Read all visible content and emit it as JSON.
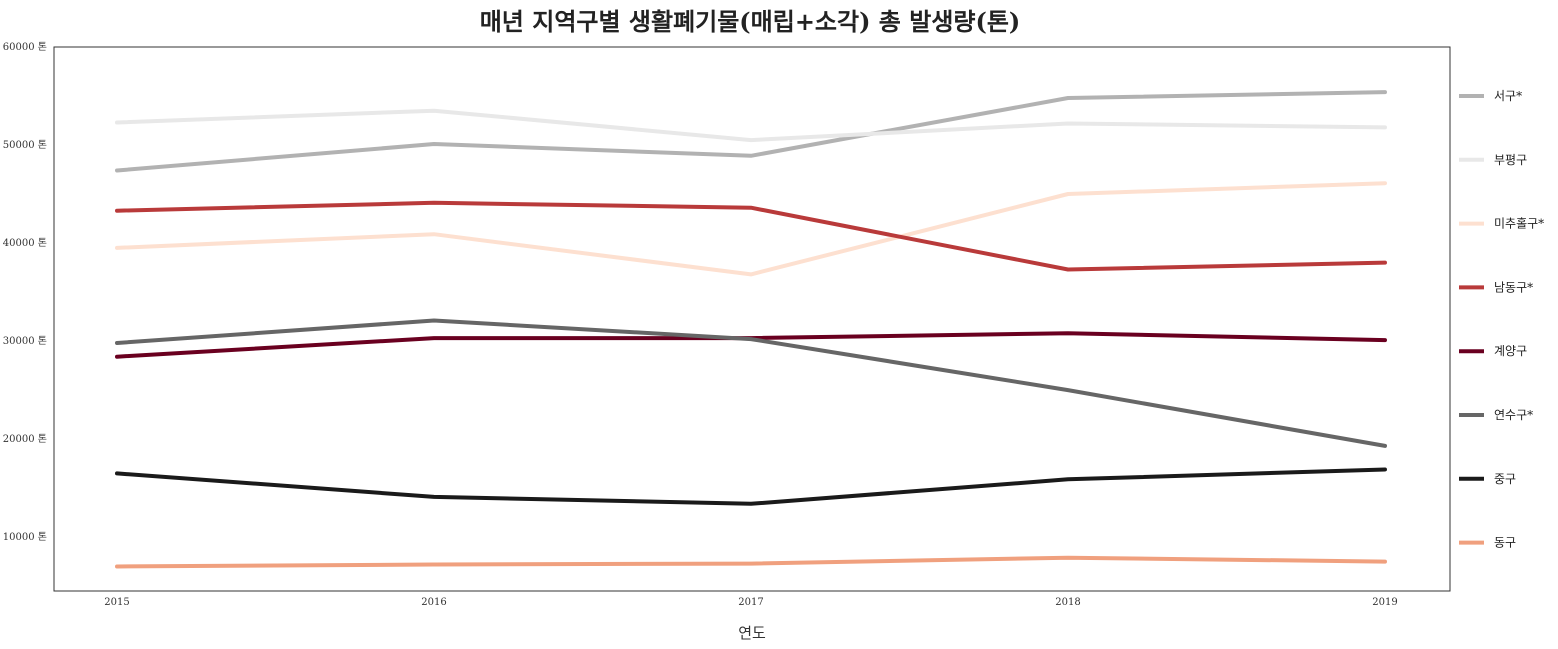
{
  "chart_data": {
    "type": "line",
    "title": "매년 지역구별 생활폐기물(매립+소각) 총 발생량(톤)",
    "xlabel": "연도",
    "ylabel": "",
    "categories": [
      "2015",
      "2016",
      "2017",
      "2018",
      "2019"
    ],
    "ylim": [
      4500,
      60000
    ],
    "y_ticks": [
      10000,
      20000,
      30000,
      40000,
      50000,
      60000
    ],
    "y_tick_labels": [
      "10000 톤",
      "20000 톤",
      "30000 톤",
      "40000 톤",
      "50000 톤",
      "60000 톤"
    ],
    "grid": false,
    "legend_position": "right",
    "series": [
      {
        "name": "서구*",
        "color": "#b2b2b2",
        "values": [
          47400,
          50100,
          48900,
          54800,
          55400
        ]
      },
      {
        "name": "부평구",
        "color": "#e8e8e8",
        "values": [
          52300,
          53500,
          50500,
          52200,
          51800
        ]
      },
      {
        "name": "미추홀구*",
        "color": "#fde0d0",
        "values": [
          39500,
          40900,
          36800,
          45000,
          46100
        ]
      },
      {
        "name": "남동구*",
        "color": "#b93a3a",
        "values": [
          43300,
          44100,
          43600,
          37300,
          38000
        ]
      },
      {
        "name": "계양구",
        "color": "#6a0020",
        "values": [
          28400,
          30300,
          30300,
          30800,
          30100
        ]
      },
      {
        "name": "연수구*",
        "color": "#666666",
        "values": [
          29800,
          32100,
          30200,
          25000,
          19300
        ]
      },
      {
        "name": "중구",
        "color": "#1a1a1a",
        "values": [
          16500,
          14100,
          13400,
          15900,
          16900
        ]
      },
      {
        "name": "동구",
        "color": "#f0a07e",
        "values": [
          7000,
          7200,
          7300,
          7900,
          7500
        ]
      }
    ]
  }
}
